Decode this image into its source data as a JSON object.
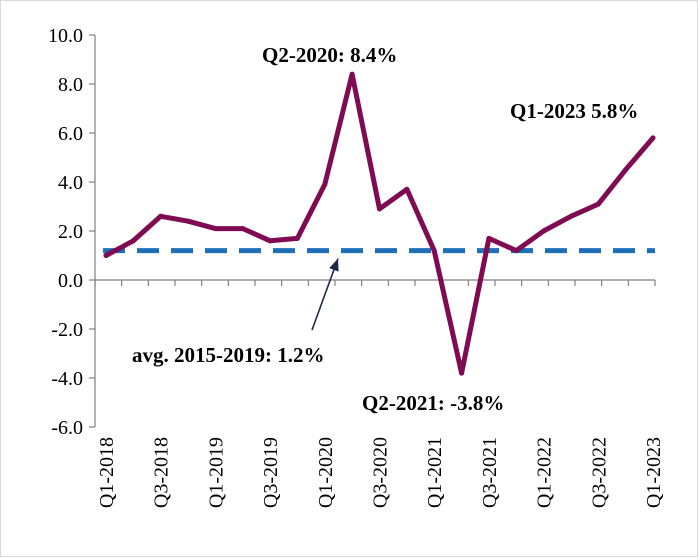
{
  "chart_data": {
    "type": "line",
    "title": "",
    "xlabel": "",
    "ylabel": "",
    "ylim": [
      -6.0,
      10.0
    ],
    "ytick_labels": [
      "10.0",
      "8.0",
      "6.0",
      "4.0",
      "2.0",
      "0.0",
      "-2.0",
      "-4.0",
      "-6.0"
    ],
    "ytick_values": [
      10,
      8,
      6,
      4,
      2,
      0,
      -2,
      -4,
      -6
    ],
    "categories": [
      "Q1-2018",
      "Q2-2018",
      "Q3-2018",
      "Q4-2018",
      "Q1-2019",
      "Q2-2019",
      "Q3-2019",
      "Q4-2019",
      "Q1-2020",
      "Q2-2020",
      "Q3-2020",
      "Q4-2020",
      "Q1-2021",
      "Q2-2021",
      "Q3-2021",
      "Q4-2021",
      "Q1-2022",
      "Q2-2022",
      "Q3-2022",
      "Q4-2022",
      "Q1-2023"
    ],
    "xtick_labels": [
      "Q1-2018",
      "Q3-2018",
      "Q1-2019",
      "Q3-2019",
      "Q1-2020",
      "Q3-2020",
      "Q1-2021",
      "Q3-2021",
      "Q1-2022",
      "Q3-2022",
      "Q1-2023"
    ],
    "series": [
      {
        "color": "#7f0b52",
        "values": [
          1.0,
          1.6,
          2.6,
          2.4,
          2.1,
          2.1,
          1.6,
          1.7,
          3.9,
          8.4,
          2.9,
          3.7,
          1.2,
          -3.8,
          1.7,
          1.2,
          2.0,
          2.6,
          3.1,
          4.5,
          5.8
        ]
      }
    ],
    "reference_line": {
      "value": 1.2,
      "color": "#1f6fb8",
      "style": "dashed"
    },
    "annotations": {
      "peak": "Q2-2020: 8.4%",
      "latest": "Q1-2023 5.8%",
      "trough": "Q2-2021: -3.8%",
      "average": "avg. 2015-2019: 1.2%"
    },
    "grid": false,
    "legend": "none"
  }
}
